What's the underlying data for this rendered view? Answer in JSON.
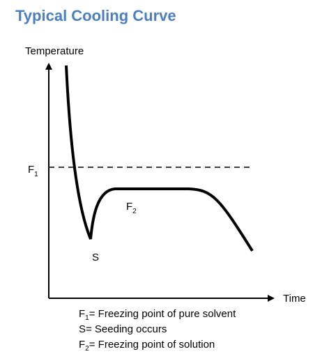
{
  "title": "Typical Cooling Curve",
  "axes": {
    "y_label": "Temperature",
    "x_label": "Time"
  },
  "labels": {
    "f1": {
      "base": "F",
      "sub": "1"
    },
    "s": "S",
    "f2": {
      "base": "F",
      "sub": "2"
    }
  },
  "legend": [
    {
      "symbol": "F",
      "sub": "1",
      "text": "= Freezing point of pure solvent"
    },
    {
      "text": "S= Seeding occurs"
    },
    {
      "symbol": "F",
      "sub": "2",
      "text": "= Freezing point of solution"
    }
  ]
}
